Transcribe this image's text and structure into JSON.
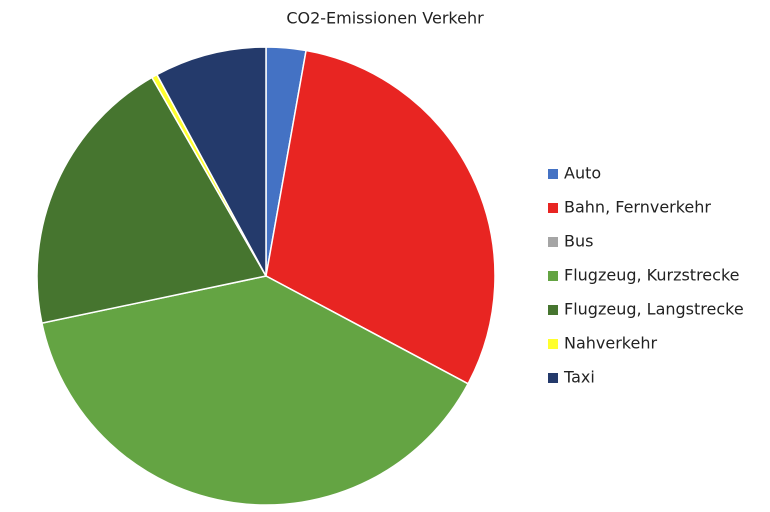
{
  "chart_data": {
    "type": "pie",
    "title": "CO2-Emissionen Verkehr",
    "categories": [
      "Auto",
      "Bahn, Fernverkehr",
      "Bus",
      "Flugzeug, Kurzstrecke",
      "Flugzeug, Langstrecke",
      "Nahverkehr",
      "Taxi"
    ],
    "values": [
      2.8,
      30,
      0,
      38.9,
      20,
      0.4,
      7.9
    ],
    "colors": [
      "#4472c4",
      "#e82522",
      "#a5a5a5",
      "#64a443",
      "#46752f",
      "#ffff2e",
      "#243a6b"
    ]
  }
}
